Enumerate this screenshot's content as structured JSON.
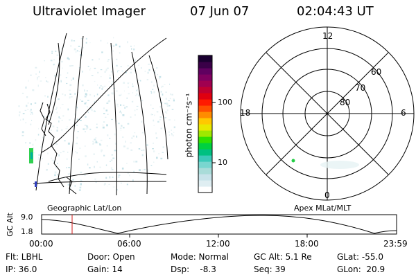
{
  "header": {
    "instrument": "Ultraviolet Imager",
    "date": "07 Jun 07",
    "time": "02:04:43 UT"
  },
  "colorbar": {
    "label": "photon cm⁻²s⁻¹",
    "ticks": [
      "100",
      "10"
    ],
    "colors": [
      "#ffffff",
      "#dfeef2",
      "#c8e3ea",
      "#a9dcd9",
      "#79d6cf",
      "#3cc9b9",
      "#00c080",
      "#00d040",
      "#30e000",
      "#a0e800",
      "#e8e800",
      "#ffc800",
      "#ff8c00",
      "#ff5000",
      "#ff1a00",
      "#e00010",
      "#c00030",
      "#a00050",
      "#800060",
      "#600060",
      "#3a0048",
      "#1a0030"
    ]
  },
  "left_panel": {
    "caption": "Geographic Lat/Lon"
  },
  "right_panel": {
    "caption": "Apex MLat/MLT",
    "mlt_labels": {
      "top": "12",
      "left": "18",
      "right": "6",
      "bottom": "0"
    },
    "lat_labels": [
      "60",
      "70",
      "80"
    ]
  },
  "altitude_plot": {
    "label": "GC Alt",
    "y_ticks": [
      "9.0",
      "1.8"
    ],
    "x_ticks": [
      "00:00",
      "06:00",
      "12:00",
      "18:00",
      "23:59"
    ],
    "current_time_marker": "02:04"
  },
  "footer": {
    "row1": [
      "Flt: LBHL",
      "Door: Open",
      "Mode: Normal",
      "GC Alt: 5.1 Re",
      "GLat: -55.0"
    ],
    "row2": [
      "IP: 36.0",
      "Gain: 14",
      "Dsp:    -8.3",
      "Seq: 39",
      "GLon:  20.9"
    ]
  },
  "colors": {
    "marker": "#d01818",
    "aurora_spot": "#22cc44"
  }
}
